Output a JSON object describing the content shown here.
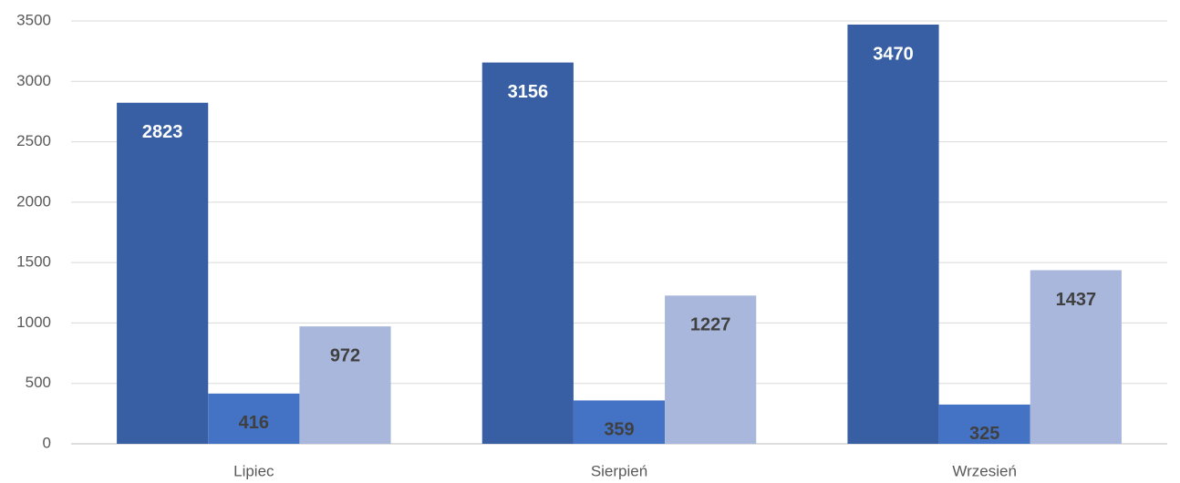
{
  "chart_data": {
    "type": "bar",
    "categories": [
      "Lipiec",
      "Sierpień",
      "Wrzesień"
    ],
    "series": [
      {
        "color": "#385fa4",
        "label_color": "#ffffff",
        "values": [
          2823,
          3156,
          3470
        ]
      },
      {
        "color": "#4472c4",
        "label_color": "#404040",
        "values": [
          416,
          359,
          325
        ]
      },
      {
        "color": "#a9b7dc",
        "label_color": "#404040",
        "values": [
          972,
          1227,
          1437
        ]
      }
    ],
    "ylim": [
      0,
      3500
    ],
    "yticks": [
      0,
      500,
      1000,
      1500,
      2000,
      2500,
      3000,
      3500
    ],
    "grid": true
  }
}
